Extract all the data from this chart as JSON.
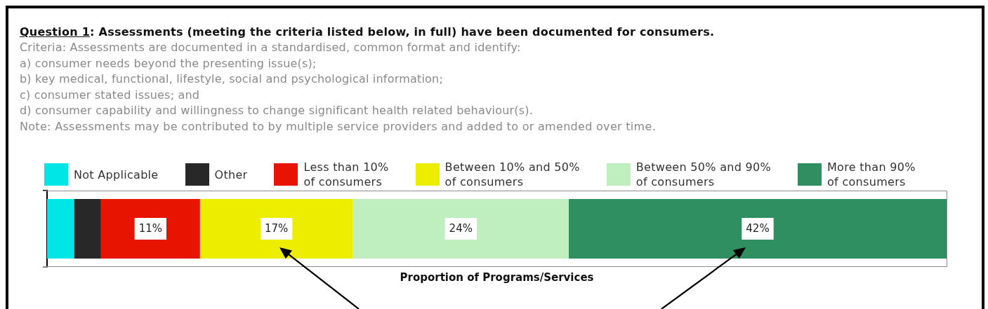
{
  "chart_data": {
    "type": "bar",
    "title": "Question 1: Assessments (meeting the criteria listed below, in full) have been documented for consumers.",
    "subtitle": "Criteria: Assessments are documented in a standardised, common format and identify:\na) consumer needs beyond the presenting issue(s);\nb) key medical, functional, lifestyle, social and psychological information;\nc) consumer stated issues; and\nd) consumer capability and willingness to change significant health related behaviour(s).",
    "annotations": [
      "Note: Assessments may be contributed to by multiple service providers and added to or amended over time."
    ],
    "xlabel": "Proportion of Programs/Services",
    "categories": [
      null
    ],
    "orientation": "horizontal",
    "stacked": true,
    "xlim": [
      0,
      100
    ],
    "tick_labels": false,
    "legend": "top",
    "series": [
      {
        "name": "Not Applicable",
        "color": "#00e6e6",
        "values": [
          3
        ],
        "value_labels": [
          null
        ]
      },
      {
        "name": "Other",
        "color": "#282828",
        "values": [
          3
        ],
        "value_labels": [
          null
        ]
      },
      {
        "name": "Less than 10%\nof consumers",
        "color": "#e61400",
        "values": [
          11
        ],
        "value_labels": [
          "11%"
        ]
      },
      {
        "name": "Between 10% and 50%\nof consumers",
        "color": "#eded00",
        "values": [
          17
        ],
        "value_labels": [
          "17%"
        ]
      },
      {
        "name": "Between 50% and 90%\nof consumers",
        "color": "#bfeebf",
        "values": [
          24
        ],
        "value_labels": [
          "24%"
        ]
      },
      {
        "name": "More than 90%\nof consumers",
        "color": "#2f8f60",
        "values": [
          42
        ],
        "value_labels": [
          "42%"
        ]
      }
    ]
  }
}
